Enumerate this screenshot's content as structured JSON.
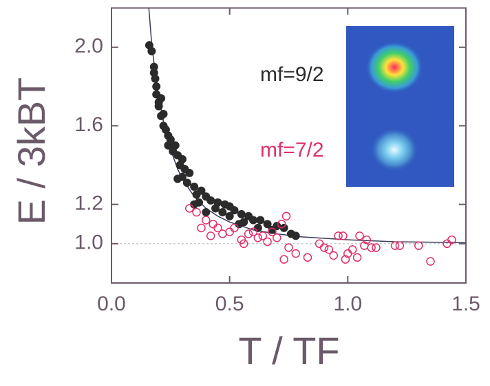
{
  "chart_data": {
    "type": "scatter",
    "xlabel": "T / TF",
    "ylabel": "E / 3kBT",
    "xlim": [
      0,
      1.5
    ],
    "ylim": [
      0.8,
      2.2
    ],
    "xticks": [
      {
        "value": 0,
        "label": "0.0"
      },
      0.5,
      {
        "value": 1,
        "label": "1.0"
      },
      1.5
    ],
    "yticks": [
      {
        "value": 1,
        "label": "1.0"
      },
      1.2,
      1.6,
      {
        "value": 2,
        "label": "2.0"
      }
    ],
    "reference_line": 1,
    "series": [
      {
        "name": "mf=9/2",
        "color": "#2b2b2b",
        "marker": "filled",
        "x": [
          0.16,
          0.17,
          0.18,
          0.18,
          0.185,
          0.19,
          0.19,
          0.2,
          0.2,
          0.21,
          0.21,
          0.22,
          0.22,
          0.23,
          0.24,
          0.25,
          0.24,
          0.27,
          0.26,
          0.28,
          0.3,
          0.29,
          0.31,
          0.33,
          0.3,
          0.28,
          0.32,
          0.35,
          0.38,
          0.36,
          0.4,
          0.42,
          0.37,
          0.45,
          0.48,
          0.5,
          0.44,
          0.52,
          0.47,
          0.55,
          0.58,
          0.5,
          0.6,
          0.63,
          0.56,
          0.66,
          0.7,
          0.62,
          0.73,
          0.68,
          0.76,
          0.78,
          0.54,
          0.4,
          0.35
        ],
        "values": [
          2.01,
          1.98,
          1.9,
          1.87,
          1.84,
          1.8,
          1.76,
          1.72,
          1.7,
          1.74,
          1.65,
          1.66,
          1.6,
          1.58,
          1.55,
          1.53,
          1.5,
          1.5,
          1.47,
          1.45,
          1.43,
          1.4,
          1.38,
          1.36,
          1.34,
          1.33,
          1.31,
          1.29,
          1.27,
          1.25,
          1.24,
          1.22,
          1.21,
          1.21,
          1.2,
          1.19,
          1.18,
          1.17,
          1.16,
          1.15,
          1.14,
          1.14,
          1.12,
          1.12,
          1.11,
          1.1,
          1.09,
          1.08,
          1.08,
          1.07,
          1.05,
          1.04,
          1.1,
          1.16,
          1.2
        ]
      },
      {
        "name": "mf=7/2",
        "color": "#e0306a",
        "marker": "open",
        "x": [
          0.33,
          0.36,
          0.4,
          0.43,
          0.45,
          0.47,
          0.5,
          0.42,
          0.55,
          0.58,
          0.62,
          0.66,
          0.68,
          0.7,
          0.72,
          0.74,
          0.75,
          0.73,
          0.78,
          0.83,
          0.88,
          0.9,
          0.92,
          0.94,
          0.96,
          0.98,
          0.99,
          1.0,
          1.02,
          1.04,
          1.05,
          1.07,
          1.08,
          1.1,
          1.12,
          1.2,
          1.22,
          1.3,
          1.35,
          1.42,
          1.44,
          0.52,
          0.6,
          0.38,
          0.56,
          0.64
        ],
        "values": [
          1.18,
          1.16,
          1.12,
          1.1,
          1.08,
          1.05,
          1.06,
          1.04,
          1.02,
          1.05,
          1.03,
          1.01,
          1.06,
          1.03,
          1.1,
          1.14,
          0.98,
          0.92,
          0.95,
          0.93,
          1.0,
          0.98,
          0.97,
          0.94,
          1.04,
          1.04,
          0.92,
          0.95,
          0.97,
          0.93,
          1.04,
          0.99,
          1.02,
          0.98,
          0.98,
          0.99,
          0.99,
          0.99,
          0.91,
          1.0,
          1.02,
          1.08,
          1.06,
          1.08,
          1.0,
          1.04
        ]
      }
    ],
    "curve": {
      "color": "#3a3a5a",
      "x": [
        0.158,
        0.17,
        0.18,
        0.2,
        0.22,
        0.25,
        0.28,
        0.3,
        0.35,
        0.4,
        0.45,
        0.5,
        0.6,
        0.7,
        0.8,
        1.0,
        1.2,
        1.5
      ],
      "values": [
        2.2,
        2.02,
        1.92,
        1.75,
        1.62,
        1.48,
        1.38,
        1.33,
        1.24,
        1.18,
        1.14,
        1.11,
        1.07,
        1.05,
        1.035,
        1.02,
        1.01,
        1.005
      ]
    }
  }
}
